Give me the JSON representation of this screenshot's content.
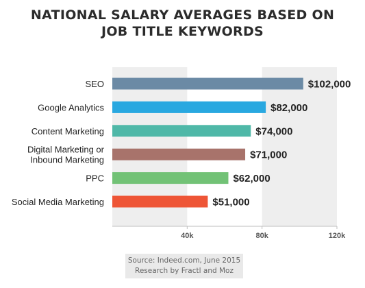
{
  "title_lines": [
    "NATIONAL SALARY AVERAGES BASED ON",
    "JOB TITLE KEYWORDS"
  ],
  "source": {
    "line1": "Source: Indeed.com, June 2015",
    "line2": "Research by Fractl and Moz"
  },
  "chart_data": {
    "type": "bar",
    "orientation": "horizontal",
    "title": "NATIONAL SALARY AVERAGES BASED ON JOB TITLE KEYWORDS",
    "categories": [
      [
        "SEO"
      ],
      [
        "Google Analytics"
      ],
      [
        "Content Marketing"
      ],
      [
        "Digital Marketing or",
        "Inbound Marketing"
      ],
      [
        "PPC"
      ],
      [
        "Social Media Marketing"
      ]
    ],
    "values": [
      102000,
      82000,
      74000,
      71000,
      62000,
      51000
    ],
    "value_labels": [
      "$102,000",
      "$82,000",
      "$74,000",
      "$71,000",
      "$62,000",
      "$51,000"
    ],
    "colors": [
      "#6b8aa5",
      "#29a8e0",
      "#4fb8a8",
      "#a8736b",
      "#72c276",
      "#ee5536"
    ],
    "xlim": [
      0,
      120000
    ],
    "xticks": [
      40000,
      80000,
      120000
    ],
    "xtick_labels": [
      "40k",
      "80k",
      "120k"
    ],
    "shaded_bands": [
      [
        0,
        40000
      ],
      [
        80000,
        120000
      ]
    ],
    "xlabel": "",
    "ylabel": "",
    "grid": false,
    "legend": "none"
  }
}
